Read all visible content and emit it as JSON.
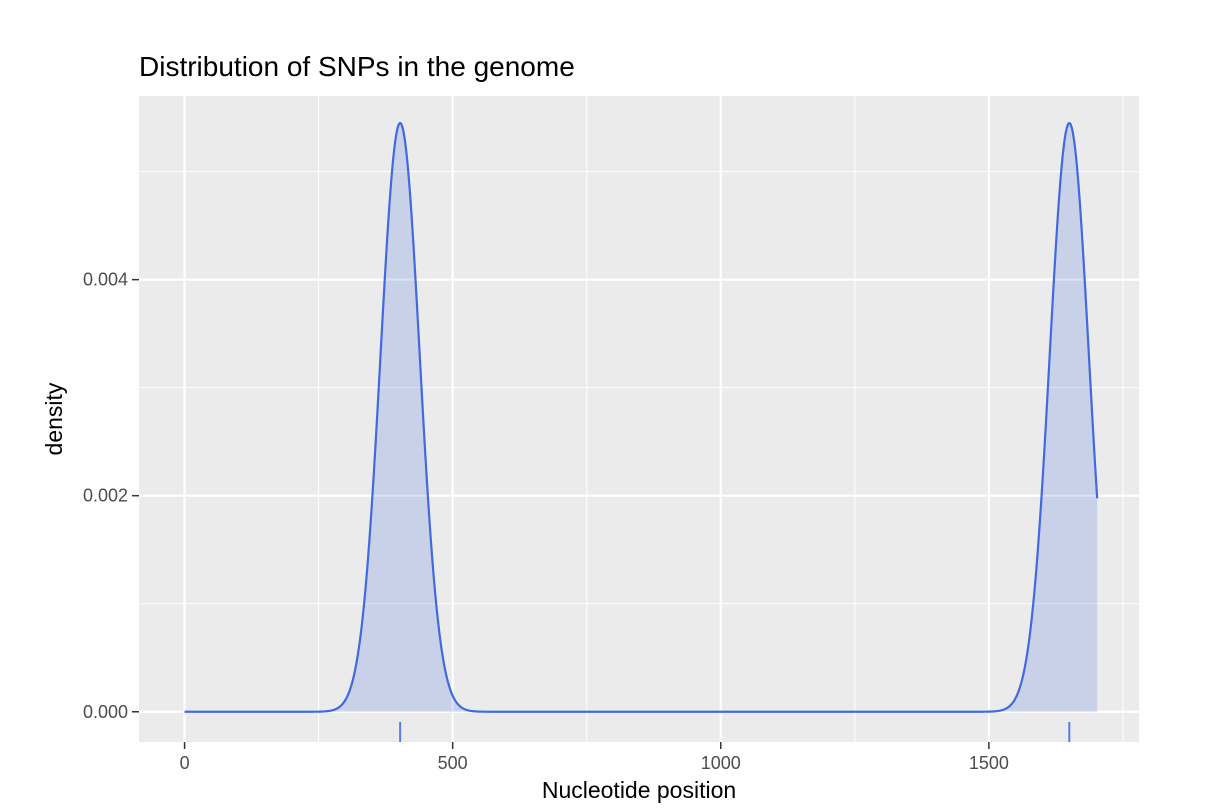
{
  "chart_data": {
    "type": "area",
    "title": "Distribution of SNPs in the genome",
    "xlabel": "Nucleotide position",
    "ylabel": "density",
    "xlim": [
      -85,
      1780
    ],
    "ylim": [
      -0.00028,
      0.0057
    ],
    "x_ticks": [
      0,
      500,
      1000,
      1500
    ],
    "x_tick_labels": [
      "0",
      "500",
      "1000",
      "1500"
    ],
    "x_minor_ticks": [
      250,
      750,
      1250,
      1750
    ],
    "y_ticks": [
      0.0,
      0.002,
      0.004
    ],
    "y_tick_labels": [
      "0.000",
      "0.002",
      "0.004"
    ],
    "y_minor_ticks": [
      0.001,
      0.003,
      0.005
    ],
    "x_range": [
      0,
      1702
    ],
    "peaks": [
      {
        "center": 402,
        "sd": 36.5,
        "height": 0.00545
      },
      {
        "center": 1650,
        "sd": 36.5,
        "height": 0.00545
      }
    ],
    "rug_positions": [
      402,
      1650
    ],
    "grid": true,
    "line_color": "#4169E1",
    "fill_color": "#4169E1",
    "fill_opacity": 0.2,
    "panel_background": "#EBEBEB",
    "gridline_color": "#FFFFFF"
  }
}
